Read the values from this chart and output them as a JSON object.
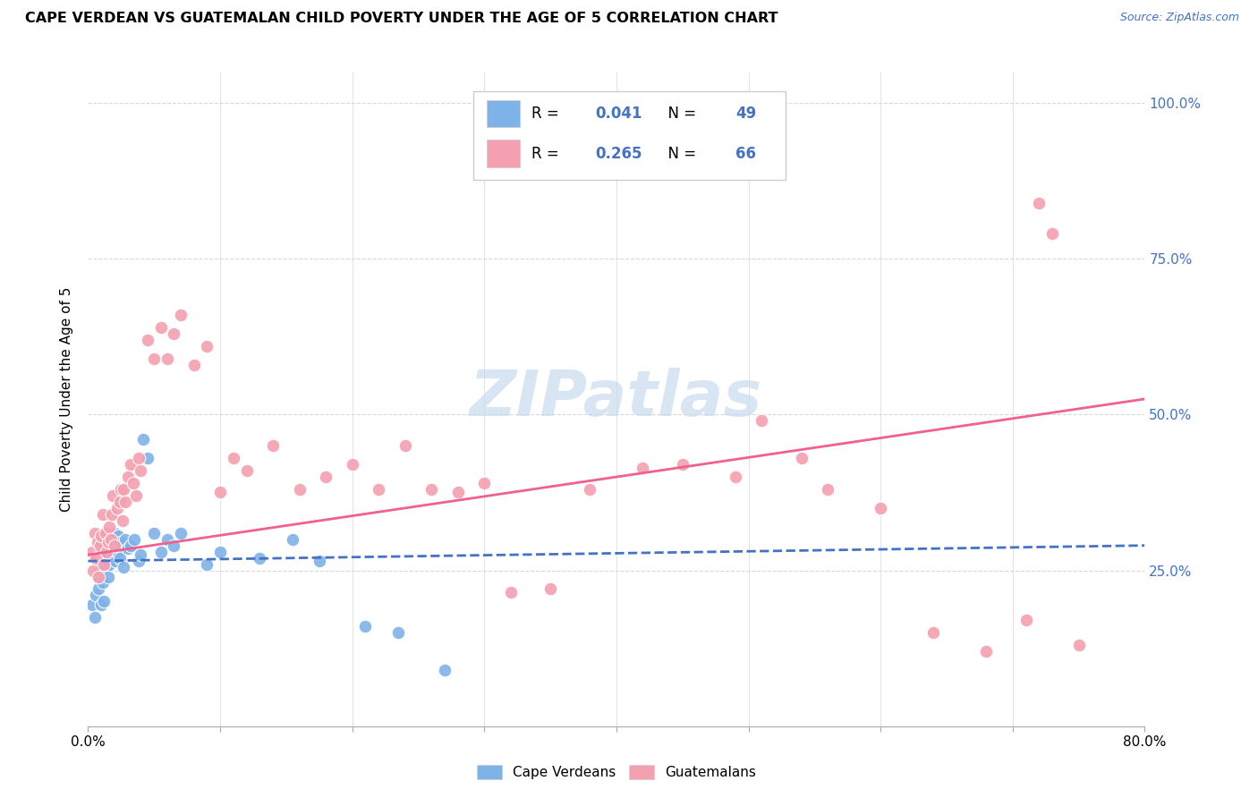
{
  "title": "CAPE VERDEAN VS GUATEMALAN CHILD POVERTY UNDER THE AGE OF 5 CORRELATION CHART",
  "source": "Source: ZipAtlas.com",
  "ylabel": "Child Poverty Under the Age of 5",
  "xlim": [
    0.0,
    0.8
  ],
  "ylim": [
    0.0,
    1.05
  ],
  "yticks": [
    0.25,
    0.5,
    0.75,
    1.0
  ],
  "ytick_labels": [
    "25.0%",
    "50.0%",
    "75.0%",
    "100.0%"
  ],
  "xticks": [
    0.0,
    0.1,
    0.2,
    0.3,
    0.4,
    0.5,
    0.6,
    0.7,
    0.8
  ],
  "xtick_labels": [
    "0.0%",
    "",
    "",
    "",
    "",
    "",
    "",
    "",
    "80.0%"
  ],
  "cape_verdean_color": "#7EB3E8",
  "guatemalan_color": "#F4A0B0",
  "trendline_cv_color": "#4472C4",
  "trendline_gt_color": "#F06090",
  "watermark_color": "#C8DCF0",
  "legend_text_color": "#4472C4",
  "source_color": "#4472C4",
  "grid_color": "#d8d8d8",
  "cv_trendline_start_y": 0.265,
  "cv_trendline_end_y": 0.29,
  "gt_trendline_start_y": 0.275,
  "gt_trendline_end_y": 0.525,
  "cv_x": [
    0.003,
    0.005,
    0.006,
    0.008,
    0.008,
    0.009,
    0.01,
    0.01,
    0.011,
    0.012,
    0.012,
    0.013,
    0.013,
    0.014,
    0.015,
    0.015,
    0.016,
    0.016,
    0.017,
    0.018,
    0.019,
    0.02,
    0.021,
    0.022,
    0.023,
    0.024,
    0.025,
    0.027,
    0.028,
    0.03,
    0.032,
    0.035,
    0.038,
    0.04,
    0.042,
    0.045,
    0.05,
    0.055,
    0.06,
    0.065,
    0.07,
    0.09,
    0.1,
    0.13,
    0.155,
    0.175,
    0.21,
    0.235,
    0.27
  ],
  "cv_y": [
    0.195,
    0.175,
    0.21,
    0.22,
    0.24,
    0.25,
    0.26,
    0.195,
    0.23,
    0.2,
    0.285,
    0.29,
    0.255,
    0.27,
    0.24,
    0.29,
    0.26,
    0.3,
    0.285,
    0.295,
    0.275,
    0.31,
    0.265,
    0.28,
    0.305,
    0.27,
    0.295,
    0.255,
    0.3,
    0.285,
    0.29,
    0.3,
    0.265,
    0.275,
    0.46,
    0.43,
    0.31,
    0.28,
    0.3,
    0.29,
    0.31,
    0.26,
    0.28,
    0.27,
    0.3,
    0.265,
    0.16,
    0.15,
    0.09
  ],
  "gt_x": [
    0.003,
    0.004,
    0.005,
    0.006,
    0.007,
    0.008,
    0.009,
    0.01,
    0.011,
    0.012,
    0.013,
    0.014,
    0.015,
    0.016,
    0.017,
    0.018,
    0.019,
    0.02,
    0.022,
    0.024,
    0.025,
    0.026,
    0.027,
    0.028,
    0.03,
    0.032,
    0.034,
    0.036,
    0.038,
    0.04,
    0.045,
    0.05,
    0.055,
    0.06,
    0.065,
    0.07,
    0.08,
    0.09,
    0.1,
    0.11,
    0.12,
    0.14,
    0.16,
    0.18,
    0.2,
    0.22,
    0.24,
    0.26,
    0.28,
    0.3,
    0.32,
    0.35,
    0.38,
    0.42,
    0.45,
    0.49,
    0.51,
    0.54,
    0.56,
    0.6,
    0.64,
    0.68,
    0.71,
    0.72,
    0.73,
    0.75
  ],
  "gt_y": [
    0.28,
    0.25,
    0.31,
    0.27,
    0.295,
    0.24,
    0.29,
    0.305,
    0.34,
    0.26,
    0.31,
    0.28,
    0.295,
    0.32,
    0.3,
    0.34,
    0.37,
    0.29,
    0.35,
    0.36,
    0.38,
    0.33,
    0.38,
    0.36,
    0.4,
    0.42,
    0.39,
    0.37,
    0.43,
    0.41,
    0.62,
    0.59,
    0.64,
    0.59,
    0.63,
    0.66,
    0.58,
    0.61,
    0.375,
    0.43,
    0.41,
    0.45,
    0.38,
    0.4,
    0.42,
    0.38,
    0.45,
    0.38,
    0.375,
    0.39,
    0.215,
    0.22,
    0.38,
    0.415,
    0.42,
    0.4,
    0.49,
    0.43,
    0.38,
    0.35,
    0.15,
    0.12,
    0.17,
    0.84,
    0.79,
    0.13
  ]
}
